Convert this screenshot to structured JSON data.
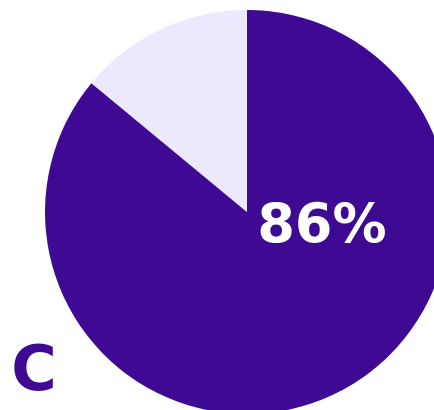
{
  "panel_label": "C",
  "chart_data": {
    "type": "pie",
    "data_label": "86%",
    "slices": [
      {
        "value": 86,
        "color": "#3f0a93"
      },
      {
        "value": 14,
        "color": "#ece8fd"
      }
    ]
  }
}
